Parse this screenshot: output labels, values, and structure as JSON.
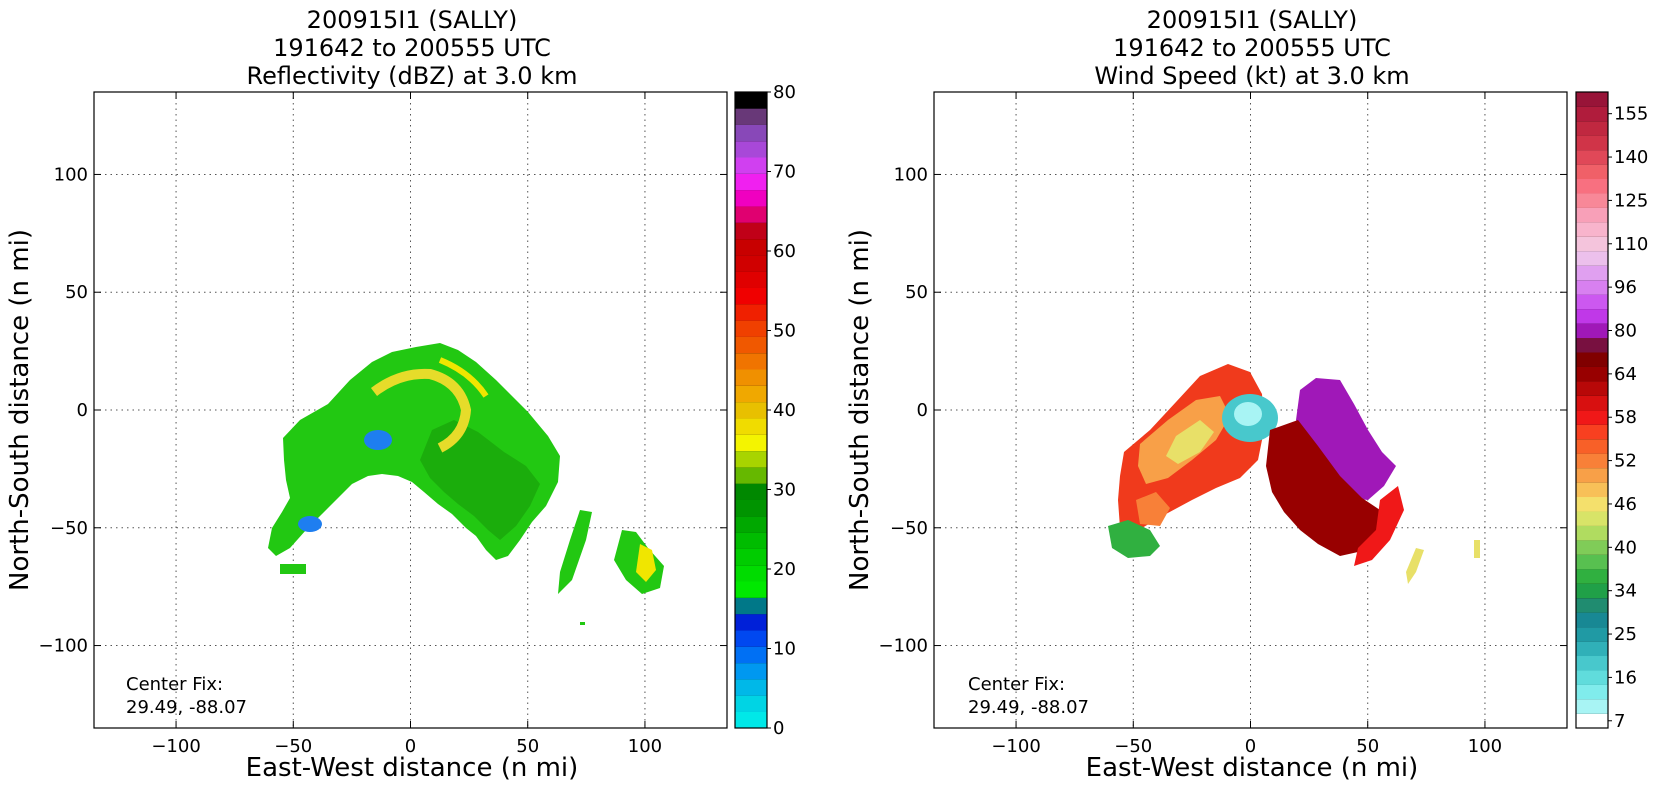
{
  "panels": [
    {
      "title_line1": "200915I1 (SALLY)",
      "title_line2": "191642 to 200555 UTC",
      "title_line3": "Reflectivity (dBZ) at 3.0 km",
      "center_fix_label": "Center Fix:",
      "center_fix_value": "29.49, -88.07",
      "colorbar_ticks": [
        "0",
        "10",
        "20",
        "30",
        "40",
        "50",
        "60",
        "70",
        "80"
      ],
      "colorbar_colors": [
        "#00e8e8",
        "#00d4e4",
        "#00b8e8",
        "#0098f0",
        "#0070f4",
        "#0048f0",
        "#0020d8",
        "#007888",
        "#00e800",
        "#00dc00",
        "#00cc00",
        "#00bc00",
        "#00a800",
        "#009400",
        "#008800",
        "#66b800",
        "#a8d400",
        "#f4f400",
        "#f0dc00",
        "#e8c000",
        "#f0a800",
        "#f09000",
        "#f07400",
        "#f05800",
        "#f04000",
        "#f02000",
        "#f00000",
        "#e00000",
        "#d00000",
        "#c80000",
        "#c00018",
        "#e00070",
        "#f000c0",
        "#f020f0",
        "#d040f0",
        "#a848d8",
        "#8848b8",
        "#683878",
        "#000000"
      ]
    },
    {
      "title_line1": "200915I1 (SALLY)",
      "title_line2": "191642 to 200555 UTC",
      "title_line3": "Wind Speed (kt) at 3.0 km",
      "center_fix_label": "Center Fix:",
      "center_fix_value": "29.49, -88.07",
      "colorbar_ticks": [
        "7",
        "16",
        "25",
        "34",
        "40",
        "46",
        "52",
        "58",
        "64",
        "80",
        "96",
        "110",
        "125",
        "140",
        "155"
      ],
      "colorbar_colors": [
        "#ffffff",
        "#a8f4f4",
        "#80ecec",
        "#60dcdc",
        "#48c8cc",
        "#30b0b8",
        "#209aa4",
        "#188894",
        "#208c70",
        "#20a048",
        "#30b040",
        "#58c050",
        "#80cc58",
        "#b0dc60",
        "#d8e468",
        "#f4e06c",
        "#f8c058",
        "#f8a048",
        "#f88038",
        "#f86028",
        "#f84020",
        "#f01818",
        "#d81010",
        "#b80808",
        "#980000",
        "#800000",
        "#781040",
        "#a018b8",
        "#c038e8",
        "#cc58f0",
        "#d880f0",
        "#e0a0f0",
        "#ecc0ec",
        "#f4c4dc",
        "#f8b4cc",
        "#f8a0b8",
        "#f88898",
        "#f87080",
        "#f06068",
        "#e04858",
        "#d03448",
        "#c02840",
        "#b01c3c",
        "#981438"
      ]
    }
  ],
  "chart_data": [
    {
      "type": "heatmap",
      "title": "200915I1 (SALLY) 191642 to 200555 UTC Reflectivity (dBZ) at 3.0 km",
      "xlabel": "East-West distance (n mi)",
      "ylabel": "North-South distance (n mi)",
      "xlim": [
        -135,
        135
      ],
      "ylim": [
        -135,
        135
      ],
      "xticks": [
        "−100",
        "−50",
        "0",
        "50",
        "100"
      ],
      "yticks": [
        "100",
        "50",
        "0",
        "−50",
        "−100"
      ],
      "x_tick_values": [
        -100,
        -50,
        0,
        50,
        100
      ],
      "y_tick_values": [
        100,
        50,
        0,
        -50,
        -100
      ],
      "grid": true,
      "colorbar": {
        "label": "dBZ",
        "min": 0,
        "max": 80
      },
      "center_fix": "29.49, -88.07"
    },
    {
      "type": "heatmap",
      "title": "200915I1 (SALLY) 191642 to 200555 UTC Wind Speed (kt) at 3.0 km",
      "xlabel": "East-West distance (n mi)",
      "ylabel": "North-South distance (n mi)",
      "xlim": [
        -135,
        135
      ],
      "ylim": [
        -135,
        135
      ],
      "xticks": [
        "−100",
        "−50",
        "0",
        "50",
        "100"
      ],
      "yticks": [
        "100",
        "50",
        "0",
        "−50",
        "−100"
      ],
      "x_tick_values": [
        -100,
        -50,
        0,
        50,
        100
      ],
      "y_tick_values": [
        100,
        50,
        0,
        -50,
        -100
      ],
      "grid": true,
      "colorbar": {
        "label": "kt",
        "min": 7,
        "max": 155
      },
      "center_fix": "29.49, -88.07"
    }
  ]
}
